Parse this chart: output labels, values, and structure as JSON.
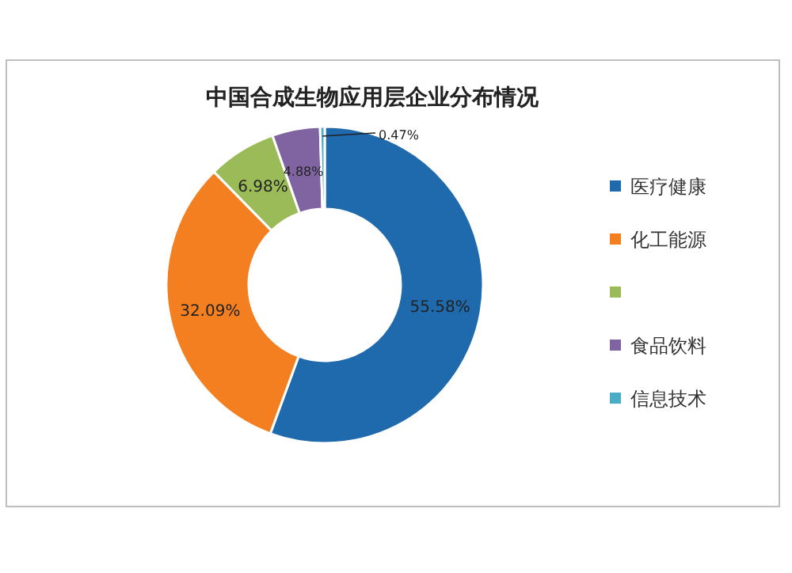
{
  "chart_data": {
    "type": "donut",
    "title": "中国合成生物应用层企业分布情况",
    "categories": [
      "医疗健康",
      "化工能源",
      null,
      "食品饮料",
      "信息技术"
    ],
    "values": [
      55.58,
      32.09,
      6.98,
      4.88,
      0.47
    ],
    "colors": [
      "#1f6aad",
      "#f47f20",
      "#9bbb59",
      "#8064a2",
      "#4bacc6"
    ],
    "value_labels": [
      "55.58%",
      "32.09%",
      "6.98%",
      "4.88%",
      "0.47%"
    ],
    "legend": "right"
  }
}
